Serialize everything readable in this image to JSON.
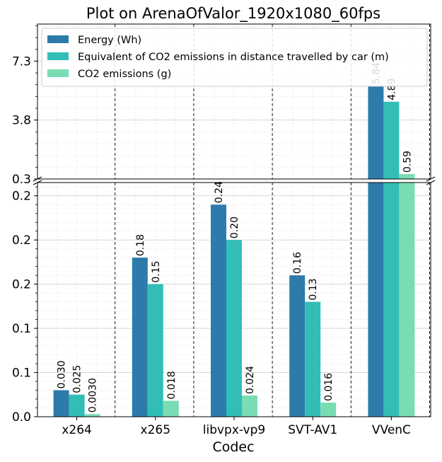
{
  "chart_data": {
    "type": "bar",
    "title": "Plot on ArenaOfValor_1920x1080_60fps",
    "xlabel": "Codec",
    "ylabel": "",
    "categories": [
      "x264",
      "x265",
      "libvpx-vp9",
      "SVT-AV1",
      "VVenC"
    ],
    "series": [
      {
        "name": "Energy (Wh)",
        "color": "#2c7bab",
        "values": [
          0.03,
          0.18,
          0.24,
          0.16,
          5.84
        ],
        "labels": [
          "0.030",
          "0.18",
          "0.24",
          "0.16",
          "5.84"
        ]
      },
      {
        "name": "Equivalent of CO2 emissions in distance travelled by car (m)",
        "color": "#32beb7",
        "values": [
          0.025,
          0.15,
          0.2,
          0.13,
          4.89
        ],
        "labels": [
          "0.025",
          "0.15",
          "0.20",
          "0.13",
          "4.89"
        ]
      },
      {
        "name": "CO2 emissions (g)",
        "color": "#7adcb3",
        "values": [
          0.003,
          0.018,
          0.024,
          0.016,
          0.59
        ],
        "labels": [
          "0.0030",
          "0.018",
          "0.024",
          "0.016",
          "0.59"
        ]
      }
    ],
    "axis_lower": {
      "range": [
        0,
        0.265
      ],
      "ticks": [
        0,
        0.05,
        0.1,
        0.15,
        0.2,
        0.25
      ],
      "tick_labels": [
        "0.0",
        "0.1",
        "0.1",
        "0.2",
        "0.2",
        "0.2"
      ]
    },
    "axis_upper": {
      "range": [
        0.3,
        9.5
      ],
      "ticks": [
        0.3,
        3.8,
        7.3
      ],
      "tick_labels": [
        "0.3",
        "3.8",
        "7.3"
      ]
    },
    "broken_axis": true,
    "grid": true,
    "legend_position": "top"
  }
}
